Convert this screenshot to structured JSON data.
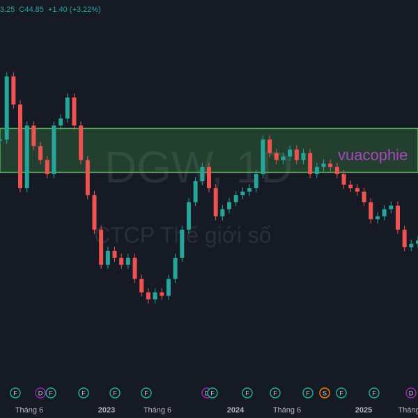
{
  "chart_data": {
    "type": "candlestick",
    "header": "3.25",
    "close_label": "C44.85",
    "change": "+1.40 (+3.22%)",
    "watermark": "DGW, 1D",
    "subtitle": "CTCP Thế giới số",
    "annotation": "vuacophie",
    "values": [
      62.1,
      72.9,
      68.1,
      53.8,
      64.5,
      61.0,
      58.6,
      56.2,
      64.5,
      65.7,
      69.3,
      64.5,
      58.6,
      52.6,
      46.7,
      40.7,
      43.1,
      41.9,
      40.7,
      41.9,
      38.3,
      36.0,
      34.8,
      36.0,
      35.4,
      38.3,
      41.9,
      46.7,
      51.4,
      55.0,
      57.4,
      53.8,
      49.0,
      50.2,
      51.4,
      52.6,
      53.2,
      53.8,
      56.2,
      62.1,
      59.8,
      58.6,
      59.2,
      60.4,
      58.6,
      59.8,
      56.2,
      57.4,
      58.0,
      57.4,
      56.2,
      54.4,
      53.8,
      53.2,
      51.4,
      48.5,
      49.0,
      50.2,
      50.8,
      46.7,
      43.7,
      44.3,
      44.85
    ],
    "up_color": "#26a69a",
    "down_color": "#ef5350",
    "ylim": [
      30,
      80
    ],
    "zone": [
      56.5,
      64.0
    ],
    "zone_color": "#4caf50",
    "x_labels": [
      "Tháng 6",
      "2023",
      "Tháng 6",
      "2024",
      "Tháng 6",
      "2025",
      "Tháng"
    ],
    "events": [
      {
        "label": "F",
        "color": "#22ab94"
      },
      {
        "label": "D",
        "color": "#9c27b0"
      },
      {
        "label": "F",
        "color": "#22ab94"
      },
      {
        "label": "F",
        "color": "#22ab94"
      },
      {
        "label": "F",
        "color": "#22ab94"
      },
      {
        "label": "F",
        "color": "#22ab94"
      },
      {
        "label": "D",
        "color": "#9c27b0"
      },
      {
        "label": "F",
        "color": "#22ab94"
      },
      {
        "label": "F",
        "color": "#22ab94"
      },
      {
        "label": "F",
        "color": "#22ab94"
      },
      {
        "label": "F",
        "color": "#22ab94"
      },
      {
        "label": "S",
        "color": "#f57c00"
      },
      {
        "label": "F",
        "color": "#22ab94"
      },
      {
        "label": "F",
        "color": "#22ab94"
      },
      {
        "label": "D",
        "color": "#9c27b0"
      }
    ]
  }
}
